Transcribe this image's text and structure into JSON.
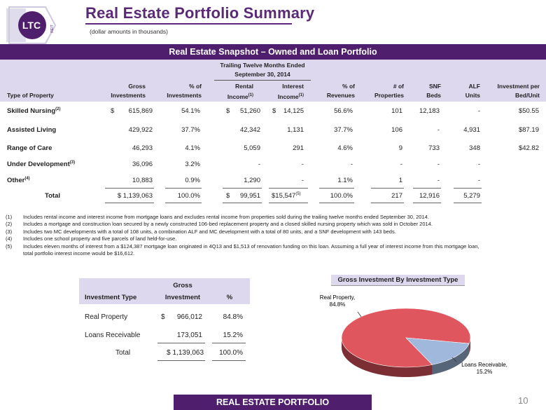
{
  "logo": {
    "text": "LTC",
    "subtext": "REIT"
  },
  "header": {
    "title": "Real Estate Portfolio Summary",
    "subtitle": "(dollar amounts in thousands)"
  },
  "banner": "Real Estate Snapshot – Owned and Loan Portfolio",
  "table": {
    "group_header_line1": "Trailing Twelve Months Ended",
    "group_header_line2": "September 30, 2014",
    "columns": {
      "type": "Type of Property",
      "gross_1": "Gross",
      "gross_2": "Investments",
      "pct_inv_1": "% of",
      "pct_inv_2": "Investments",
      "rental_1": "Rental",
      "rental_2": "Income",
      "rental_sup": "(1)",
      "interest_1": "Interest",
      "interest_2": "Income",
      "interest_sup": "(1)",
      "pct_rev_1": "% of",
      "pct_rev_2": "Revenues",
      "props_1": "# of",
      "props_2": "Properties",
      "snf_1": "SNF",
      "snf_2": "Beds",
      "alf_1": "ALF",
      "alf_2": "Units",
      "ipb_1": "Investment per",
      "ipb_2": "Bed/Unit"
    },
    "rows": [
      {
        "type": "Skilled Nursing",
        "sup": "(2)",
        "gross_sym": "$",
        "gross": "615,869",
        "pct_inv": "54.1%",
        "rental_sym": "$",
        "rental": "51,260",
        "interest_sym": "$",
        "interest": "14,125",
        "pct_rev": "56.6%",
        "props": "101",
        "snf": "12,183",
        "alf": "-",
        "ipb": "$50.55"
      },
      {
        "type": "Assisted Living",
        "sup": "",
        "gross_sym": "",
        "gross": "429,922",
        "pct_inv": "37.7%",
        "rental_sym": "",
        "rental": "42,342",
        "interest_sym": "",
        "interest": "1,131",
        "pct_rev": "37.7%",
        "props": "106",
        "snf": "-",
        "alf": "4,931",
        "ipb": "$87.19"
      },
      {
        "type": "Range of Care",
        "sup": "",
        "gross_sym": "",
        "gross": "46,293",
        "pct_inv": "4.1%",
        "rental_sym": "",
        "rental": "5,059",
        "interest_sym": "",
        "interest": "291",
        "pct_rev": "4.6%",
        "props": "9",
        "snf": "733",
        "alf": "348",
        "ipb": "$42.82"
      },
      {
        "type": "Under Development",
        "sup": "(3)",
        "gross_sym": "",
        "gross": "36,096",
        "pct_inv": "3.2%",
        "rental_sym": "",
        "rental": "-",
        "interest_sym": "",
        "interest": "-",
        "pct_rev": "-",
        "props": "-",
        "snf": "-",
        "alf": "-",
        "ipb": ""
      },
      {
        "type": "Other",
        "sup": "(4)",
        "gross_sym": "",
        "gross": "10,883",
        "pct_inv": "0.9%",
        "rental_sym": "",
        "rental": "1,290",
        "interest_sym": "",
        "interest": "-",
        "pct_rev": "1.1%",
        "props": "1",
        "snf": "-",
        "alf": "-",
        "ipb": ""
      }
    ],
    "total": {
      "label": "Total",
      "gross": "$ 1,139,063",
      "pct_inv": "100.0%",
      "rental_sym": "$",
      "rental": "99,951",
      "interest": "$15,547",
      "interest_sup": "(5)",
      "pct_rev": "100.0%",
      "props": "217",
      "snf": "12,916",
      "alf": "5,279"
    }
  },
  "footnotes": [
    {
      "num": "(1)",
      "text": "Includes rental income and interest income from mortgage loans and excludes rental income from properties sold during the trailing twelve months ended September 30, 2014."
    },
    {
      "num": "(2)",
      "text": "Includes a mortgage and construction loan secured by a newly constructed 106-bed replacement property and a closed skilled nursing property which was sold in October 2014."
    },
    {
      "num": "(3)",
      "text": "Includes two MC developments with a total of 108 units, a combination ALF and MC development with a total of 80 units, and a SNF development with 143 beds."
    },
    {
      "num": "(4)",
      "text": "Includes one school property and five parcels of land held-for-use."
    },
    {
      "num": "(5)",
      "text": "Includes eleven months of interest from a $124,387 mortgage loan originated in 4Q13 and $1,513 of renovation funding on this loan.  Assuming a full year of interest income from this mortgage loan, total portfolio interest income would be $16,612."
    }
  ],
  "investment_table": {
    "head_top": "Gross",
    "col_type": "Investment Type",
    "col_inv": "Investment",
    "col_pct": "%",
    "rows": [
      {
        "type": "Real Property",
        "sym": "$",
        "inv": "966,012",
        "pct": "84.8%"
      },
      {
        "type": "Loans Receivable",
        "sym": "",
        "inv": "173,051",
        "pct": "15.2%"
      }
    ],
    "total": {
      "label": "Total",
      "inv": "$ 1,139,063",
      "pct": "100.0%"
    }
  },
  "chart_data": {
    "type": "pie",
    "title": "Gross Investment By Investment Type",
    "categories": [
      "Real Property",
      "Loans Receivable"
    ],
    "values": [
      84.8,
      15.2
    ],
    "labels": [
      {
        "line1": "Real Property,",
        "line2": "84.8%"
      },
      {
        "line1": "Loans Receivable,",
        "line2": "15.2%"
      }
    ],
    "colors": [
      "#e0565e",
      "#9fb8dc"
    ]
  },
  "footer": {
    "label": "REAL ESTATE PORTFOLIO",
    "page": "10"
  }
}
